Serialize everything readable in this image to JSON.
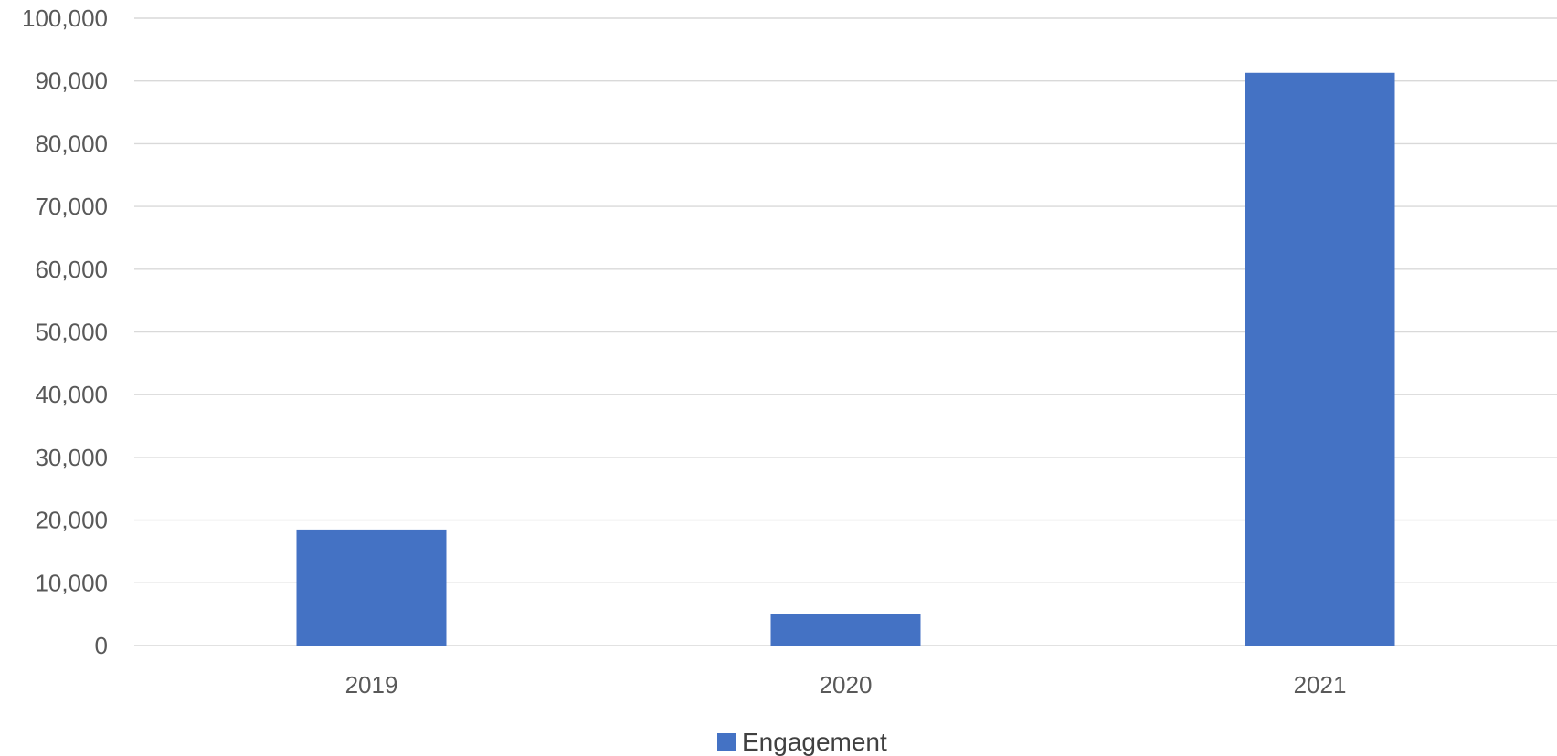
{
  "chart_data": {
    "type": "bar",
    "title": "",
    "xlabel": "",
    "ylabel": "",
    "categories": [
      "2019",
      "2020",
      "2021"
    ],
    "series": [
      {
        "name": "Engagement",
        "color": "#4472c4",
        "values": [
          18500,
          5000,
          91300
        ]
      }
    ],
    "ylim": [
      0,
      100000
    ],
    "yticks": [
      0,
      10000,
      20000,
      30000,
      40000,
      50000,
      60000,
      70000,
      80000,
      90000,
      100000
    ],
    "ytick_labels": [
      "0",
      "10,000",
      "20,000",
      "30,000",
      "40,000",
      "50,000",
      "60,000",
      "70,000",
      "80,000",
      "90,000",
      "100,000"
    ],
    "grid": true,
    "legend_position": "bottom"
  }
}
